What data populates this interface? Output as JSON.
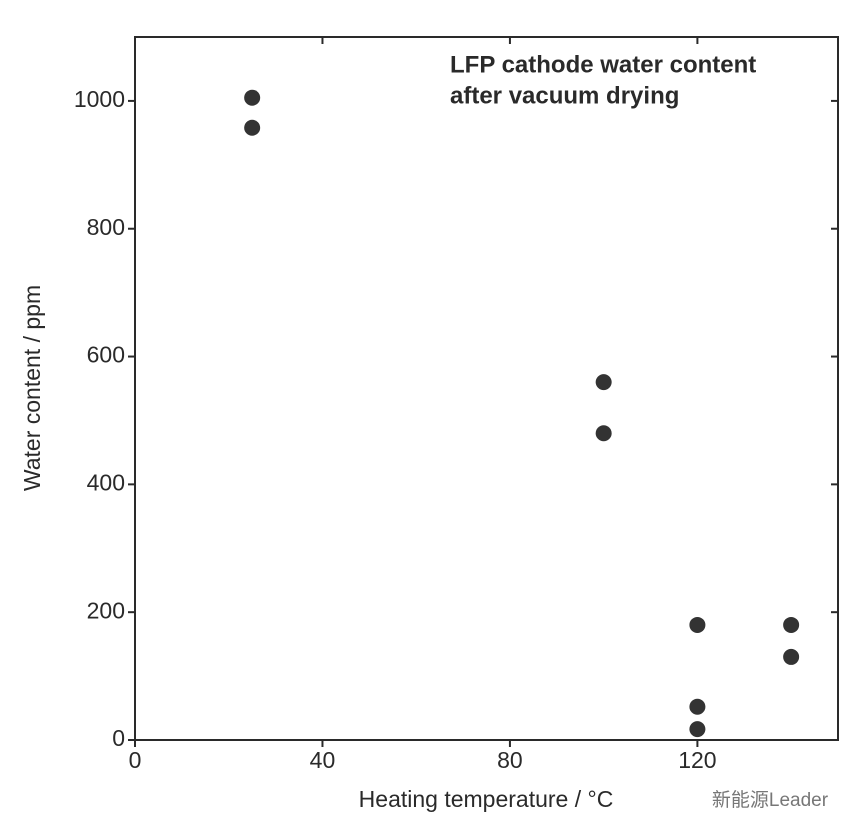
{
  "chart_data": {
    "type": "scatter",
    "title": [
      "LFP cathode water content",
      "after vacuum drying"
    ],
    "x_label": "Heating temperature / °C",
    "y_label": "Water content / ppm",
    "watermark": "新能源Leader",
    "color": "#333333",
    "x": [
      25,
      25,
      100,
      100,
      120,
      120,
      120,
      140,
      140
    ],
    "values": [
      1005,
      958,
      560,
      480,
      180,
      52,
      17,
      180,
      130
    ],
    "xlim": [
      0,
      150
    ],
    "xticks": [
      0,
      40,
      80,
      120
    ],
    "ylim": [
      0,
      1100
    ],
    "yticks": [
      0,
      200,
      400,
      600,
      800,
      1000
    ],
    "grid": false
  }
}
